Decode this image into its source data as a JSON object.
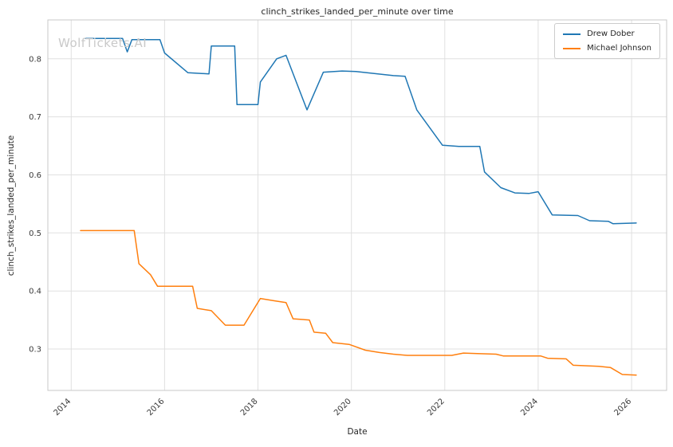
{
  "watermark": "WolfTickets.AI",
  "chart_data": {
    "type": "line",
    "title": "clinch_strikes_landed_per_minute over time",
    "xlabel": "Date",
    "ylabel": "clinch_strikes_landed_per_minute",
    "xlim": [
      2013.5,
      2026.75
    ],
    "ylim": [
      0.2286,
      0.867
    ],
    "xticks": [
      2014,
      2016,
      2018,
      2020,
      2022,
      2024,
      2026
    ],
    "yticks": [
      0.3,
      0.4,
      0.5,
      0.6,
      0.7,
      0.8
    ],
    "grid": true,
    "legend_position": "upper right",
    "series": [
      {
        "name": "Drew Dober",
        "color": "#1f77b4",
        "points": [
          [
            2014.3,
            0.835
          ],
          [
            2015.1,
            0.835
          ],
          [
            2015.2,
            0.812
          ],
          [
            2015.3,
            0.833
          ],
          [
            2015.9,
            0.833
          ],
          [
            2016.0,
            0.81
          ],
          [
            2016.5,
            0.776
          ],
          [
            2016.95,
            0.774
          ],
          [
            2017.0,
            0.822
          ],
          [
            2017.5,
            0.822
          ],
          [
            2017.55,
            0.721
          ],
          [
            2018.0,
            0.721
          ],
          [
            2018.05,
            0.76
          ],
          [
            2018.4,
            0.8
          ],
          [
            2018.6,
            0.806
          ],
          [
            2019.05,
            0.712
          ],
          [
            2019.4,
            0.777
          ],
          [
            2019.8,
            0.779
          ],
          [
            2020.1,
            0.778
          ],
          [
            2020.45,
            0.775
          ],
          [
            2020.9,
            0.771
          ],
          [
            2021.15,
            0.77
          ],
          [
            2021.4,
            0.712
          ],
          [
            2021.95,
            0.651
          ],
          [
            2022.3,
            0.649
          ],
          [
            2022.75,
            0.649
          ],
          [
            2022.85,
            0.605
          ],
          [
            2023.2,
            0.578
          ],
          [
            2023.5,
            0.569
          ],
          [
            2023.8,
            0.568
          ],
          [
            2024.0,
            0.571
          ],
          [
            2024.3,
            0.531
          ],
          [
            2024.85,
            0.53
          ],
          [
            2025.1,
            0.521
          ],
          [
            2025.5,
            0.52
          ],
          [
            2025.6,
            0.516
          ],
          [
            2026.1,
            0.517
          ]
        ]
      },
      {
        "name": "Michael Johnson",
        "color": "#ff7f0e",
        "points": [
          [
            2014.2,
            0.504
          ],
          [
            2015.35,
            0.504
          ],
          [
            2015.45,
            0.447
          ],
          [
            2015.7,
            0.428
          ],
          [
            2015.85,
            0.408
          ],
          [
            2016.6,
            0.408
          ],
          [
            2016.7,
            0.37
          ],
          [
            2017.0,
            0.366
          ],
          [
            2017.3,
            0.341
          ],
          [
            2017.7,
            0.341
          ],
          [
            2018.05,
            0.387
          ],
          [
            2018.35,
            0.383
          ],
          [
            2018.6,
            0.38
          ],
          [
            2018.75,
            0.352
          ],
          [
            2019.1,
            0.35
          ],
          [
            2019.2,
            0.329
          ],
          [
            2019.45,
            0.327
          ],
          [
            2019.6,
            0.311
          ],
          [
            2019.95,
            0.308
          ],
          [
            2020.3,
            0.298
          ],
          [
            2020.6,
            0.294
          ],
          [
            2020.9,
            0.291
          ],
          [
            2021.2,
            0.289
          ],
          [
            2022.15,
            0.289
          ],
          [
            2022.4,
            0.293
          ],
          [
            2022.7,
            0.292
          ],
          [
            2023.1,
            0.291
          ],
          [
            2023.25,
            0.288
          ],
          [
            2024.05,
            0.288
          ],
          [
            2024.2,
            0.284
          ],
          [
            2024.6,
            0.283
          ],
          [
            2024.75,
            0.272
          ],
          [
            2025.3,
            0.27
          ],
          [
            2025.55,
            0.268
          ],
          [
            2025.8,
            0.256
          ],
          [
            2026.1,
            0.255
          ]
        ]
      }
    ]
  }
}
